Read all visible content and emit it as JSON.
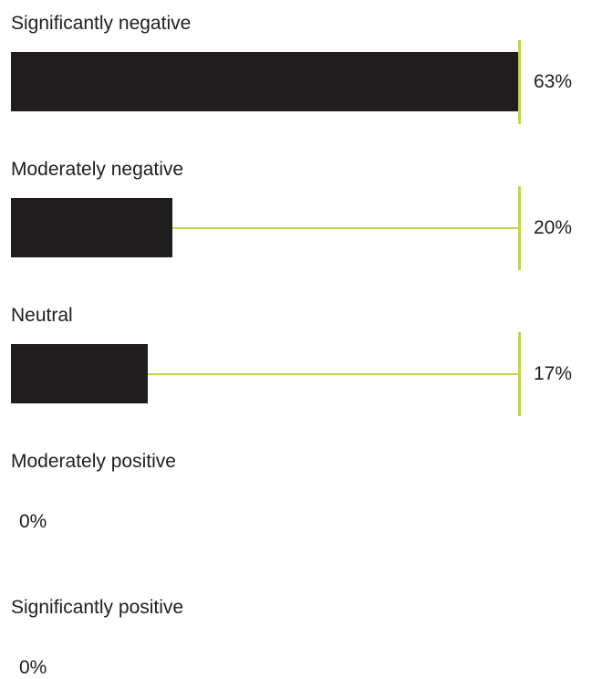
{
  "colors": {
    "bar": "#1f1d1e",
    "accent": "#bcd74a",
    "text": "#1f1d1e"
  },
  "chart_data": {
    "type": "bar",
    "orientation": "horizontal",
    "categories": [
      "Significantly negative",
      "Moderately negative",
      "Neutral",
      "Moderately positive",
      "Significantly positive"
    ],
    "values": [
      63,
      20,
      17,
      0,
      0
    ],
    "value_labels": [
      "63%",
      "20%",
      "17%",
      "0%",
      "0%"
    ],
    "unit": "%",
    "xlim": [
      0,
      63
    ]
  }
}
